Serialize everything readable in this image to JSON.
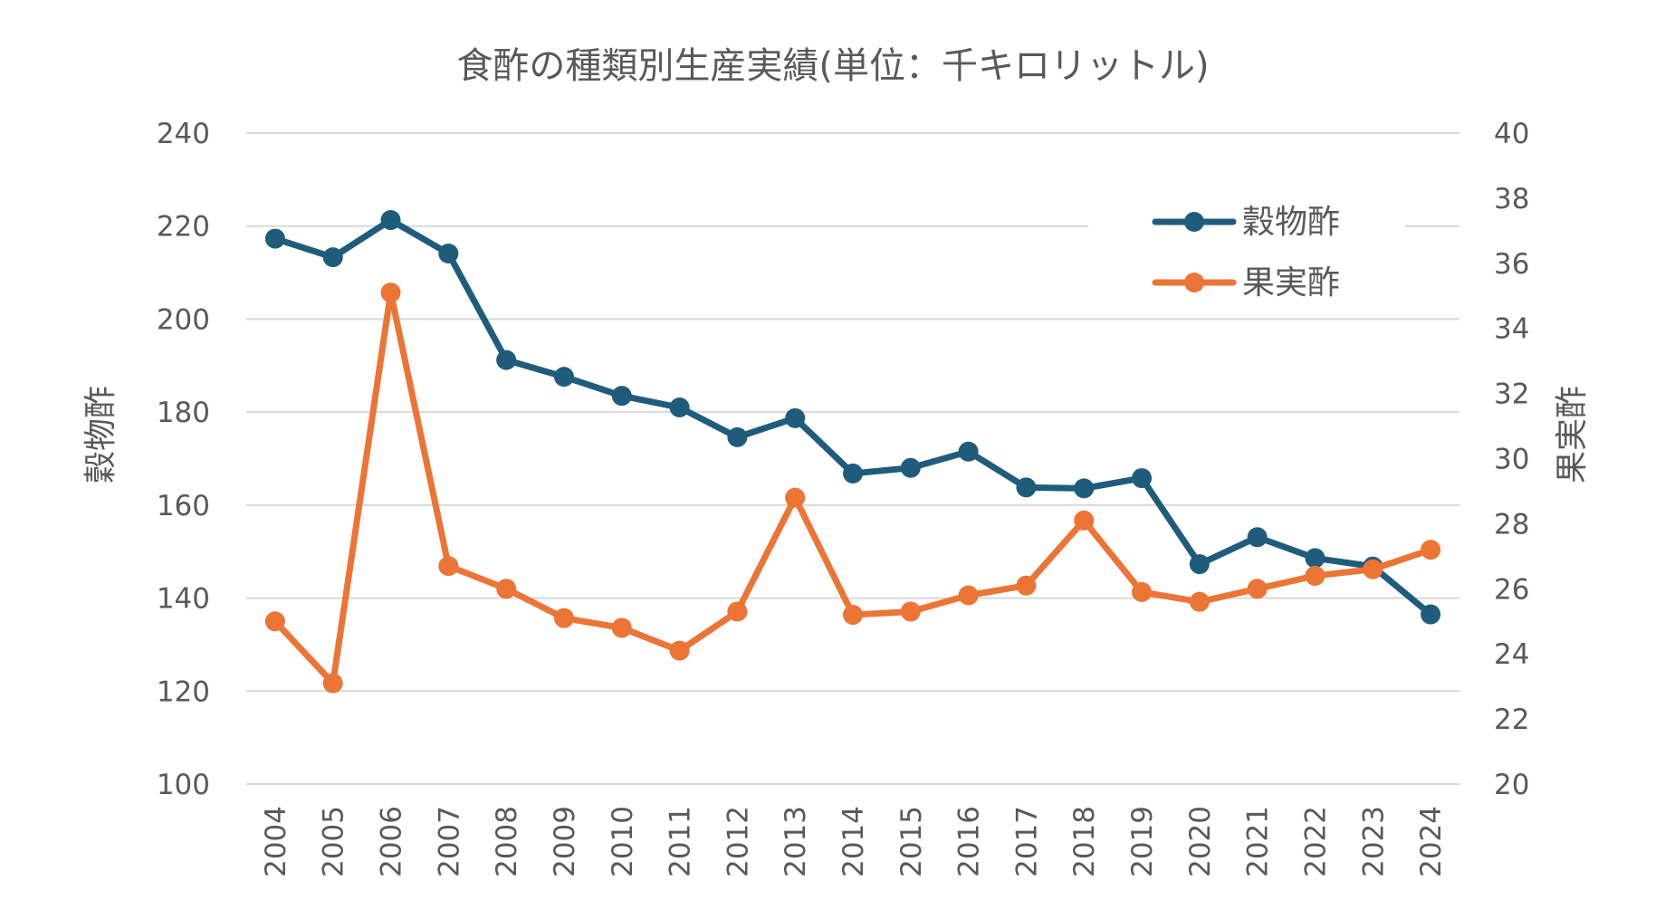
{
  "chart_data": {
    "type": "line",
    "title": "食酢の種類別生産実績(単位：千キロリットル)",
    "categories": [
      "2004",
      "2005",
      "2006",
      "2007",
      "2008",
      "2009",
      "2010",
      "2011",
      "2012",
      "2013",
      "2014",
      "2015",
      "2016",
      "2017",
      "2018",
      "2019",
      "2020",
      "2021",
      "2022",
      "2023",
      "2024"
    ],
    "series": [
      {
        "name": "穀物酢",
        "axis": "left",
        "color": "#1f5c7c",
        "values": [
          217.3,
          213.3,
          221.3,
          214.1,
          191.2,
          187.6,
          183.5,
          181.0,
          174.6,
          178.7,
          166.8,
          168.0,
          171.5,
          163.8,
          163.6,
          165.8,
          147.3,
          153.1,
          148.6,
          146.8,
          136.5
        ]
      },
      {
        "name": "果実酢",
        "axis": "right",
        "color": "#ec7435",
        "values": [
          25.0,
          23.1,
          35.1,
          26.7,
          26.0,
          25.1,
          24.8,
          24.1,
          25.3,
          28.8,
          25.2,
          25.3,
          25.8,
          26.1,
          28.1,
          25.9,
          25.6,
          26.0,
          26.4,
          26.6,
          27.2
        ]
      }
    ],
    "y_left": {
      "label": "穀物酢",
      "range": [
        100,
        240
      ],
      "ticks": [
        100,
        120,
        140,
        160,
        180,
        200,
        220,
        240
      ]
    },
    "y_right": {
      "label": "果実酢",
      "range": [
        20,
        40
      ],
      "ticks": [
        20,
        22,
        24,
        26,
        28,
        30,
        32,
        34,
        36,
        38,
        40
      ]
    },
    "grid": true,
    "legend": {
      "position": "top-right",
      "entries": [
        "穀物酢",
        "果実酢"
      ]
    }
  }
}
